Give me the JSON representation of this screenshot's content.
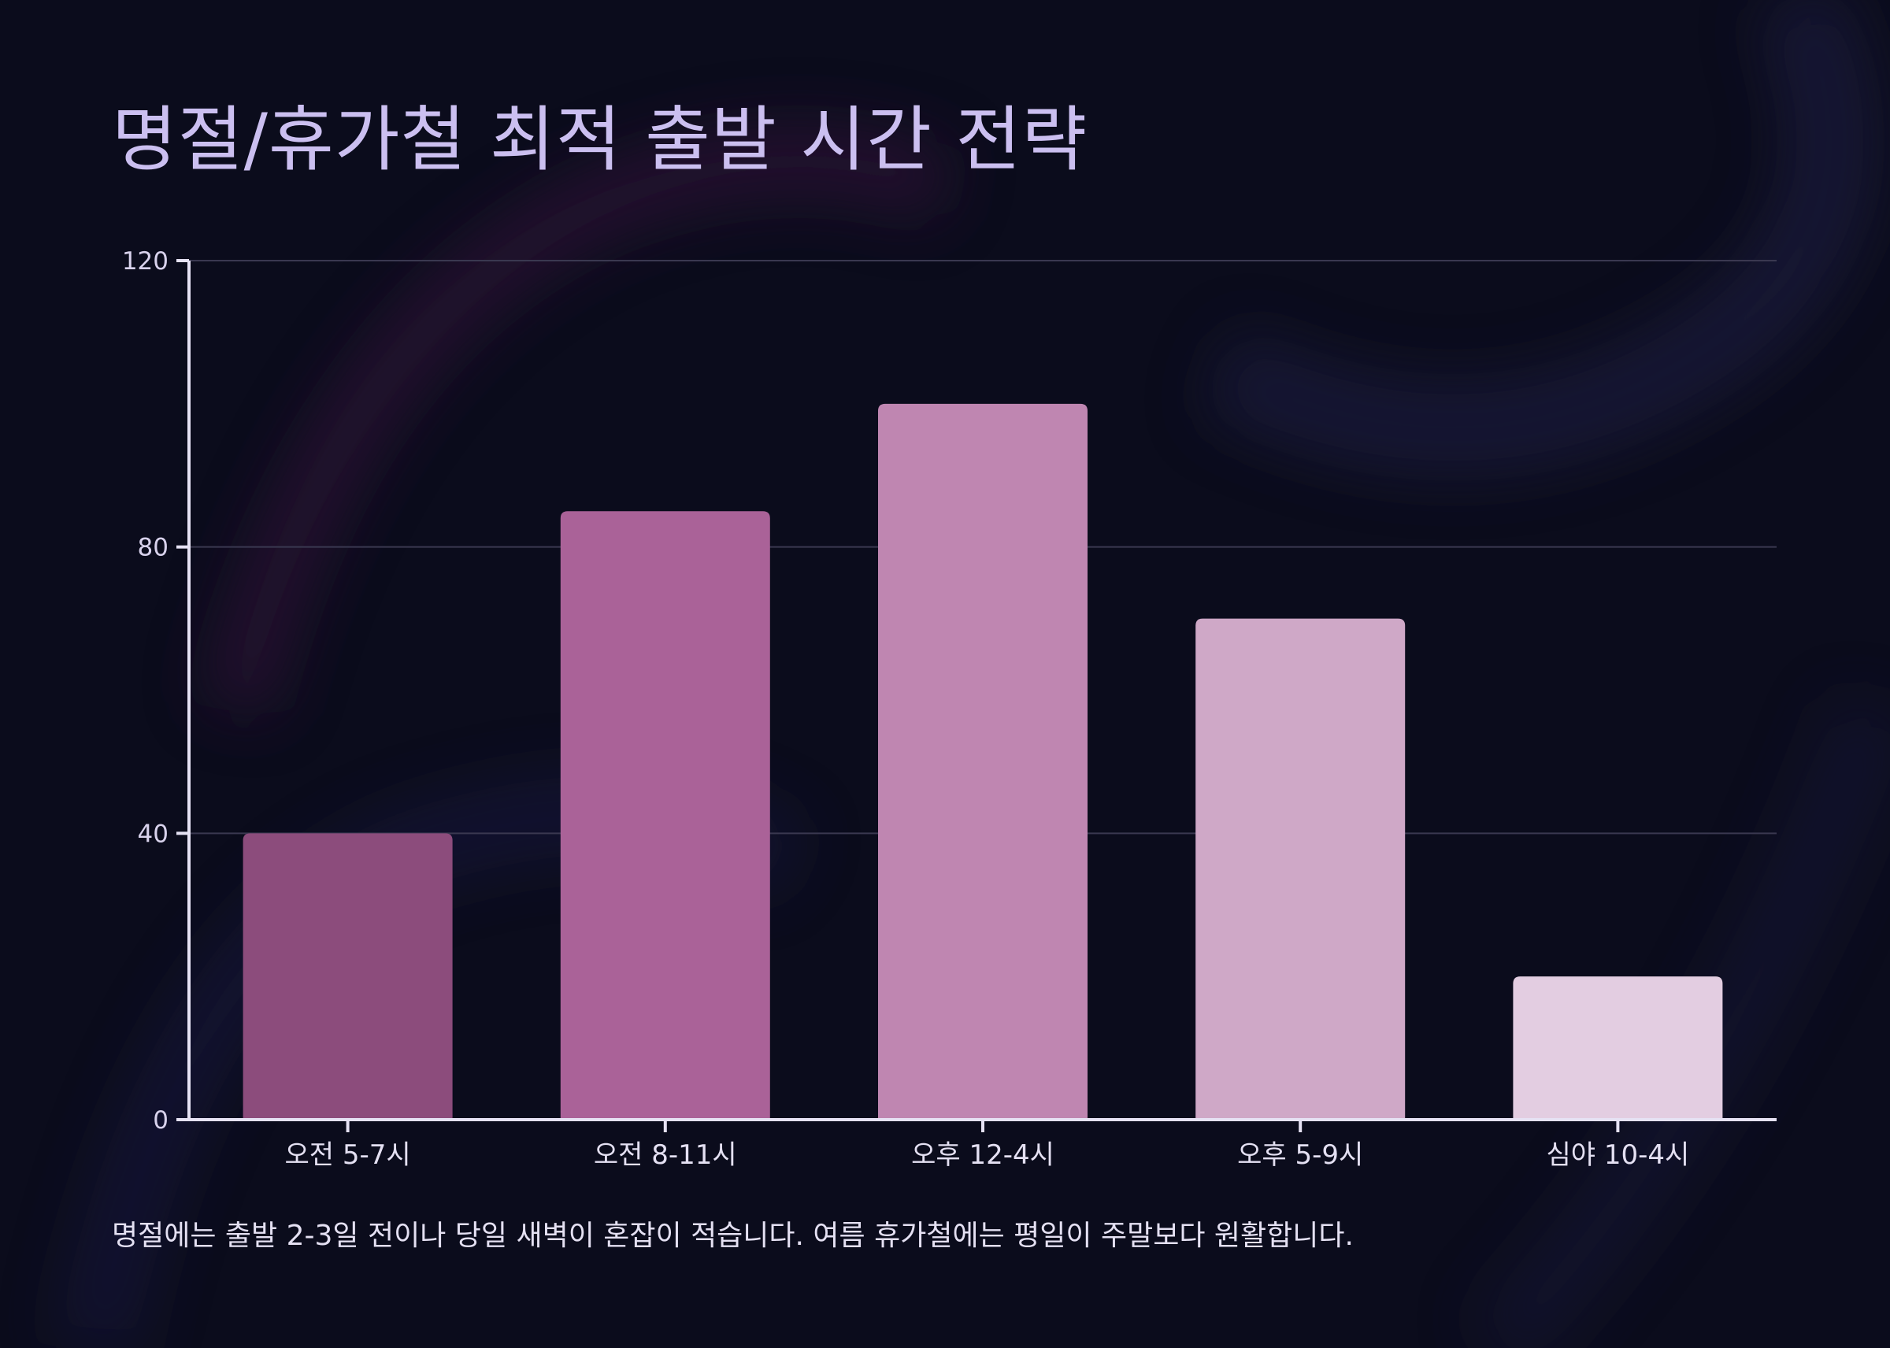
{
  "chart_data": {
    "type": "bar",
    "title": "명절/휴가철 최적 출발 시간 전략",
    "xlabel": "",
    "ylabel": "",
    "categories": [
      "오전 5-7시",
      "오전 8-11시",
      "오후 12-4시",
      "오후 5-9시",
      "심야 10-4시"
    ],
    "values": [
      40,
      85,
      100,
      70,
      20
    ],
    "ylim": [
      0,
      120
    ],
    "yticks": [
      "0",
      "40",
      "80",
      "120"
    ],
    "bar_colors": [
      "#8c4c7c",
      "#aa6298",
      "#bf86b1",
      "#cfa8c7",
      "#e3cde1"
    ],
    "grid": true,
    "legend": "none",
    "note": "명절에는 출발 2-3일 전이나 당일 새벽이 혼잡이 적습니다. 여름 휴가철에는 평일이 주말보다 원활합니다."
  },
  "colors": {
    "background": "#0b0c1c",
    "title": "#cbbff0",
    "axis": "#e6e2f4",
    "grid": "#3a3850",
    "text": "#e4e0f2"
  }
}
